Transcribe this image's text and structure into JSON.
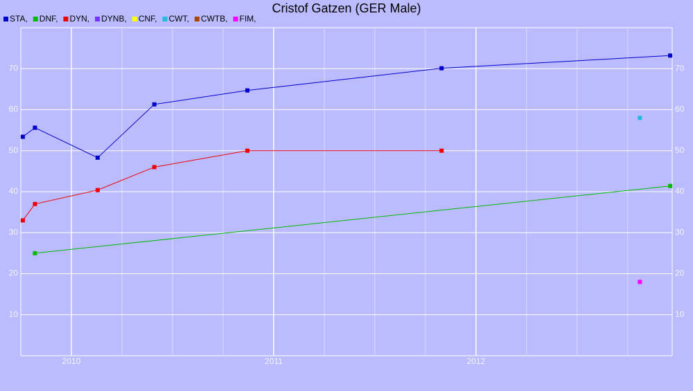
{
  "chart_data": {
    "type": "line",
    "title": "Cristof Gatzen (GER Male)",
    "xlim": [
      2009.75,
      2012.97
    ],
    "xticks": [
      2010,
      2011,
      2012
    ],
    "ylim": [
      0,
      80
    ],
    "yticks": [
      10,
      20,
      30,
      40,
      50,
      60,
      70
    ],
    "grid": true,
    "series": [
      {
        "name": "STA,",
        "color": "#0000cc",
        "x": [
          2009.76,
          2009.82,
          2010.13,
          2010.41,
          2010.87,
          2011.83,
          2012.96
        ],
        "values": [
          53.4,
          55.6,
          48.3,
          61.3,
          64.7,
          70.1,
          73.2
        ]
      },
      {
        "name": "DNF,",
        "color": "#00bb00",
        "x": [
          2009.82,
          2012.96
        ],
        "values": [
          25.0,
          41.4
        ]
      },
      {
        "name": "DYN,",
        "color": "#ee0000",
        "x": [
          2009.76,
          2009.82,
          2010.13,
          2010.41,
          2010.87,
          2011.83
        ],
        "values": [
          33.0,
          37.0,
          40.4,
          46.0,
          50.0,
          50.0
        ]
      },
      {
        "name": "DYNB,",
        "color": "#7733ff",
        "x": [],
        "values": []
      },
      {
        "name": "CNF,",
        "color": "#ffff00",
        "x": [],
        "values": []
      },
      {
        "name": "CWT,",
        "color": "#22bbdd",
        "x": [
          2012.81
        ],
        "values": [
          58.0
        ]
      },
      {
        "name": "CWTB,",
        "color": "#aa4400",
        "x": [],
        "values": []
      },
      {
        "name": "FIM,",
        "color": "#ff00ff",
        "x": [
          2012.81
        ],
        "values": [
          18.0
        ]
      }
    ]
  }
}
